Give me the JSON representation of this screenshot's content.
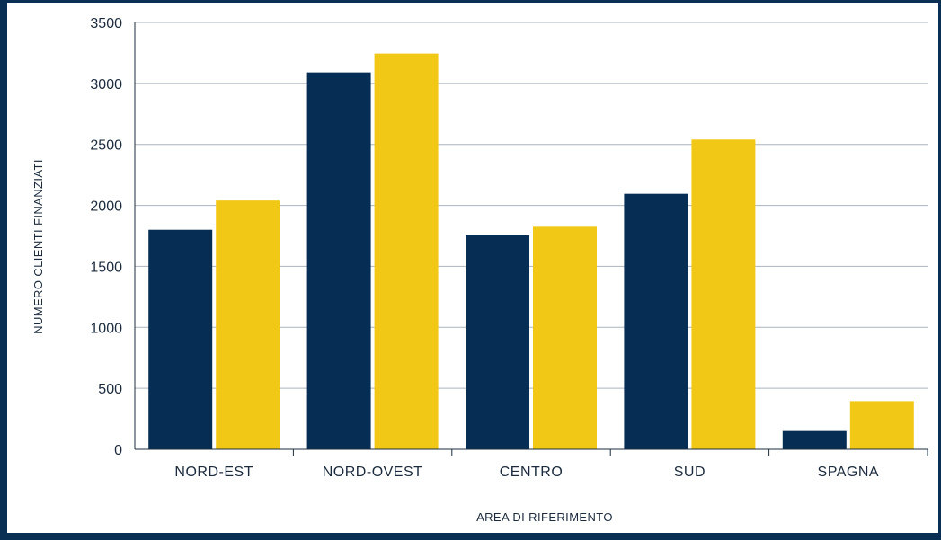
{
  "chart_data": {
    "type": "bar",
    "categories": [
      "NORD-EST",
      "NORD-OVEST",
      "CENTRO",
      "SUD",
      "SPAGNA"
    ],
    "series": [
      {
        "values": [
          1800,
          3090,
          1755,
          2095,
          150
        ],
        "color": "#062e55"
      },
      {
        "values": [
          2040,
          3245,
          1825,
          2540,
          395
        ],
        "color": "#f2c817"
      }
    ],
    "title": "",
    "xlabel": "AREA DI RIFERIMENTO",
    "ylabel": "NUMERO CLIENTI FINANZIATI",
    "ylim": [
      0,
      3500
    ],
    "yticks": [
      "0",
      "500",
      "1000",
      "1500",
      "2000",
      "2500",
      "3000",
      "3500"
    ],
    "grid": true,
    "legend": "none"
  }
}
